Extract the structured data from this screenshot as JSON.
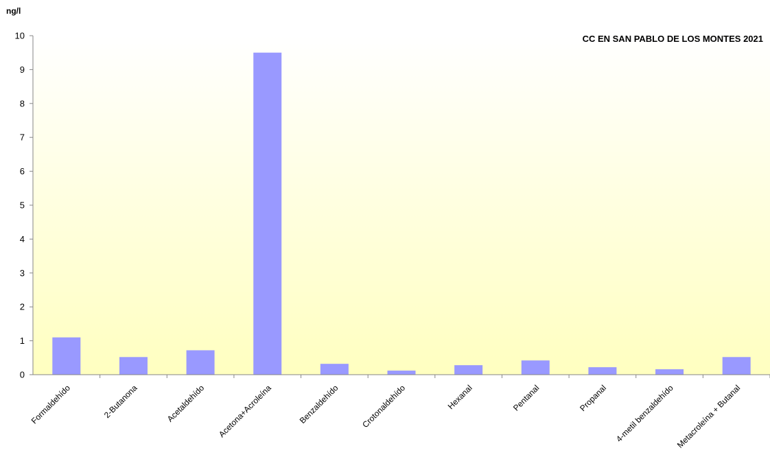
{
  "chart_data": {
    "type": "bar",
    "title": "CC EN SAN PABLO DE LOS MONTES 2021",
    "ylabel": "ng/l",
    "xlabel": "",
    "ylim": [
      0,
      10
    ],
    "yticks": [
      "0",
      "1",
      "2",
      "3",
      "4",
      "5",
      "6",
      "7",
      "8",
      "9",
      "10"
    ],
    "grid": false,
    "legend": "none",
    "bar_color": "#9999ff",
    "plot_background_top": "#ffffff",
    "plot_background_bottom": "#ffffc0",
    "categories": [
      "Formaldehído",
      "2-Butanona",
      "Acetaldehído",
      "Acetona+Acroleína",
      "Benzaldehído",
      "Crotonaldehído",
      "Hexanal",
      "Pentanal",
      "Propanal",
      "4-metil benzaldehído",
      "Metacroleína + Butanal"
    ],
    "values": [
      1.1,
      0.52,
      0.72,
      9.5,
      0.32,
      0.12,
      0.28,
      0.42,
      0.22,
      0.16,
      0.52
    ]
  }
}
